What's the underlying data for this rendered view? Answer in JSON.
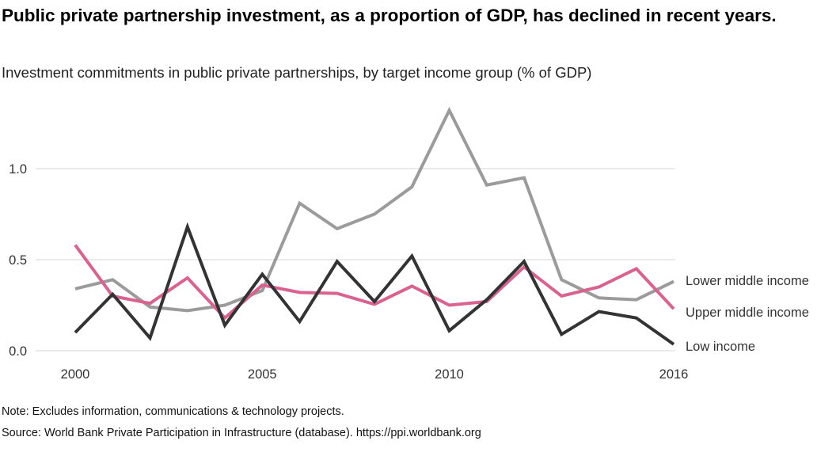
{
  "title": "Public private partnership investment, as a proportion of GDP, has declined in recent years.",
  "subtitle": "Investment commitments in public private partnerships, by target income group (% of GDP)",
  "notes": {
    "note": "Note: Excludes information, communications & technology projects.",
    "source": "Source: World Bank Private Participation in Infrastructure (database). https://ppi.worldbank.org"
  },
  "chart_data": {
    "type": "line",
    "x": [
      2000,
      2001,
      2002,
      2003,
      2004,
      2005,
      2006,
      2007,
      2008,
      2009,
      2010,
      2011,
      2012,
      2013,
      2014,
      2015,
      2016
    ],
    "x_ticks": [
      2000,
      2005,
      2010,
      2016
    ],
    "x_tick_labels": [
      "2000",
      "2005",
      "2010",
      "2016"
    ],
    "y_ticks": [
      0.0,
      0.5,
      1.0
    ],
    "y_tick_labels": [
      "0.0",
      "0.5",
      "1.0"
    ],
    "xlim": [
      2000,
      2016
    ],
    "ylim": [
      0,
      1.4
    ],
    "grid": "horizontal",
    "legend": "direct labels at right end of lines",
    "series": [
      {
        "name": "Lower middle income",
        "color": "#9b9b9b",
        "values": [
          0.34,
          0.39,
          0.24,
          0.22,
          0.25,
          0.33,
          0.81,
          0.67,
          0.75,
          0.9,
          1.32,
          0.91,
          0.95,
          0.39,
          0.29,
          0.28,
          0.38
        ]
      },
      {
        "name": "Upper middle income",
        "color": "#d9628e",
        "values": [
          0.58,
          0.3,
          0.26,
          0.4,
          0.18,
          0.36,
          0.32,
          0.315,
          0.255,
          0.355,
          0.25,
          0.27,
          0.46,
          0.3,
          0.35,
          0.45,
          0.23
        ]
      },
      {
        "name": "Low income",
        "color": "#333333",
        "values": [
          0.1,
          0.31,
          0.07,
          0.68,
          0.14,
          0.42,
          0.16,
          0.49,
          0.27,
          0.52,
          0.11,
          0.28,
          0.49,
          0.09,
          0.215,
          0.18,
          0.035
        ]
      }
    ]
  }
}
